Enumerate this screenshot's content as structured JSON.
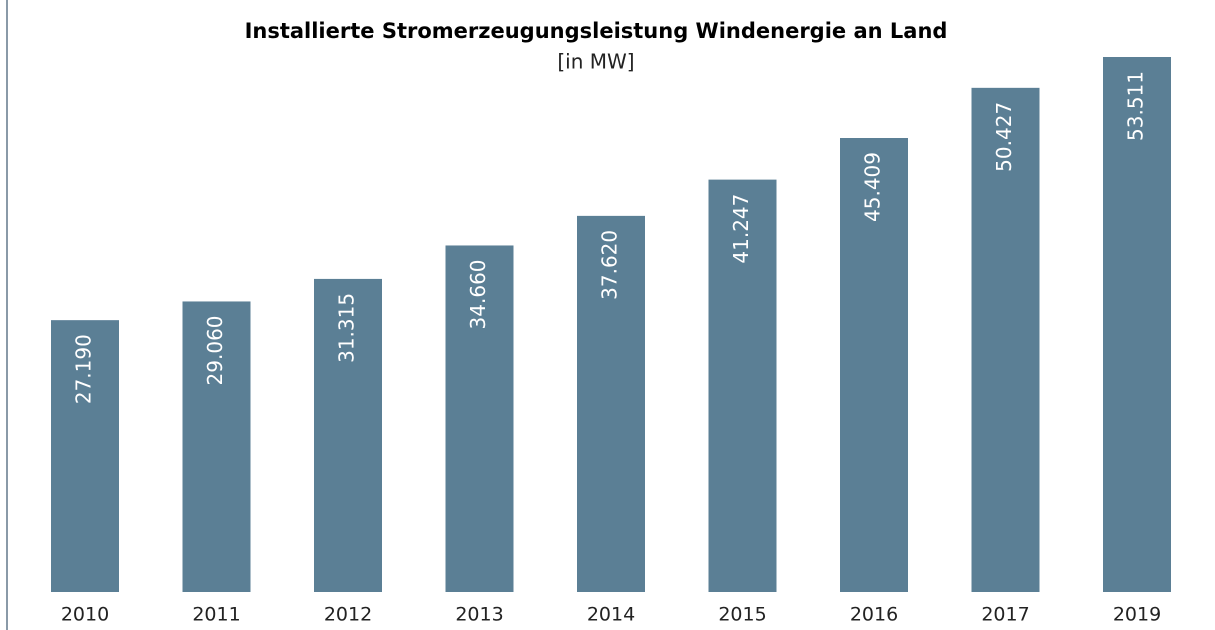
{
  "chart_data": {
    "type": "bar",
    "title": "Installierte Stromerzeugungsleistung  Windenergie an Land",
    "subtitle": "[in MW]",
    "categories": [
      "2010",
      "2011",
      "2012",
      "2013",
      "2014",
      "2015",
      "2016",
      "2017",
      "2019"
    ],
    "values": [
      27190,
      29060,
      31315,
      34660,
      37620,
      41247,
      45409,
      50427,
      53511
    ],
    "value_labels": [
      "27.190",
      "29.060",
      "31.315",
      "34.660",
      "37.620",
      "41.247",
      "45.409",
      "50.427",
      "53.511"
    ],
    "color": "#5b7f95"
  }
}
